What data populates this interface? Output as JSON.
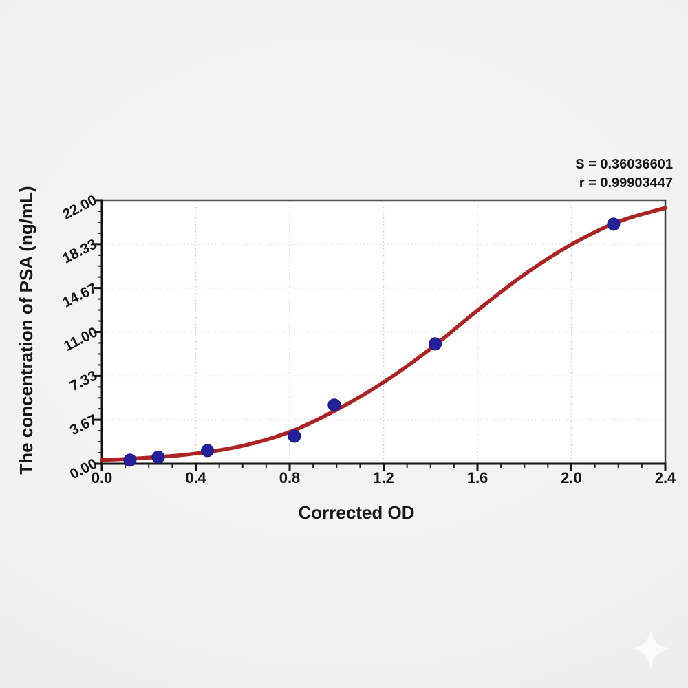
{
  "annotation": {
    "s_label": "S = 0.36036601",
    "r_label": "r = 0.99903447"
  },
  "chart_data": {
    "type": "scatter",
    "title": "",
    "xlabel": "Corrected OD",
    "ylabel": "The concentration of PSA (ng/mL)",
    "xlim": [
      0,
      2.4
    ],
    "ylim": [
      0,
      22
    ],
    "x_ticks": [
      0.0,
      0.4,
      0.8,
      1.2,
      1.6,
      2.0,
      2.4
    ],
    "x_tick_labels": [
      "0.0",
      "0.4",
      "0.8",
      "1.2",
      "1.6",
      "2.0",
      "2.4"
    ],
    "x_minor_step": 0.1,
    "y_ticks": [
      0,
      3.67,
      7.33,
      11.0,
      14.67,
      18.33,
      22.0
    ],
    "y_tick_labels": [
      "0.00",
      "3.67",
      "7.33",
      "11.00",
      "14.67",
      "18.33",
      "22.00"
    ],
    "y_minor_per_major": 3,
    "grid": "dotted gray gridlines at major ticks, white plot background",
    "legend": "none",
    "stats": {
      "S": 0.36036601,
      "r": 0.99903447
    },
    "series": [
      {
        "name": "standard-points",
        "type": "scatter",
        "color": "#22219b",
        "marker_radius": 9,
        "points": [
          [
            0.12,
            0.3
          ],
          [
            0.24,
            0.55
          ],
          [
            0.45,
            1.1
          ],
          [
            0.82,
            2.3
          ],
          [
            0.99,
            4.9
          ],
          [
            1.42,
            10.0
          ],
          [
            2.18,
            20.0
          ]
        ]
      },
      {
        "name": "fitted-curve",
        "type": "line",
        "color": "#ac2324",
        "stroke_width": 5.5,
        "points": [
          [
            0.0,
            0.3
          ],
          [
            0.2,
            0.5
          ],
          [
            0.4,
            0.85
          ],
          [
            0.6,
            1.5
          ],
          [
            0.8,
            2.65
          ],
          [
            1.0,
            4.5
          ],
          [
            1.2,
            6.8
          ],
          [
            1.4,
            9.6
          ],
          [
            1.6,
            12.8
          ],
          [
            1.8,
            15.8
          ],
          [
            2.0,
            18.3
          ],
          [
            2.2,
            20.2
          ],
          [
            2.4,
            21.35
          ]
        ]
      }
    ],
    "colors": {
      "frame_dark": "#141414",
      "frame_light": "#565656",
      "gridline": "#c5c5c5",
      "plot_background": "#ffffff",
      "page_background": "#eeefee",
      "text": "#161616"
    }
  },
  "watermark": {
    "icon": "four-point-sparkle",
    "color": "#fdfdfd"
  }
}
